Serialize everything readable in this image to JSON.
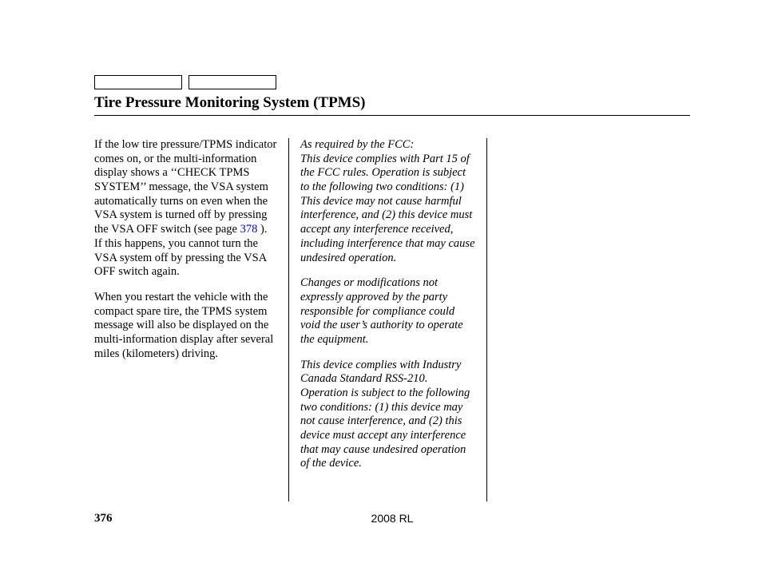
{
  "title": "Tire Pressure Monitoring System (TPMS)",
  "col1": {
    "p1a": "If the low tire pressure/TPMS indicator comes on, or the multi-information display shows a ‘‘CHECK TPMS SYSTEM’’ message, the VSA system automatically turns on even when the VSA system is turned off by pressing the VSA OFF switch (see page ",
    "p1_link": "378",
    "p1b": " ). If this happens, you cannot turn the VSA system off by pressing the VSA OFF switch again.",
    "p2": "When you restart the vehicle with the compact spare tire, the TPMS system message will also be displayed on the multi-information display after several miles (kilometers) driving."
  },
  "col2": {
    "p1": "As required by the FCC:\nThis device complies with Part 15 of the FCC rules. Operation is subject to the following two conditions: (1) This device may not cause harmful interference, and (2) this device must accept any interference received, including interference that may cause undesired operation.",
    "p2": "Changes or modifications not expressly approved by the party responsible for compliance could void the user’s authority to operate the equipment.",
    "p3": "This device complies with Industry Canada Standard RSS-210.\nOperation is subject to the following two conditions: (1) this device may not cause interference, and (2) this device must accept any interference that may cause undesired operation of the device."
  },
  "footer": {
    "page_num": "376",
    "model": "2008  RL"
  }
}
